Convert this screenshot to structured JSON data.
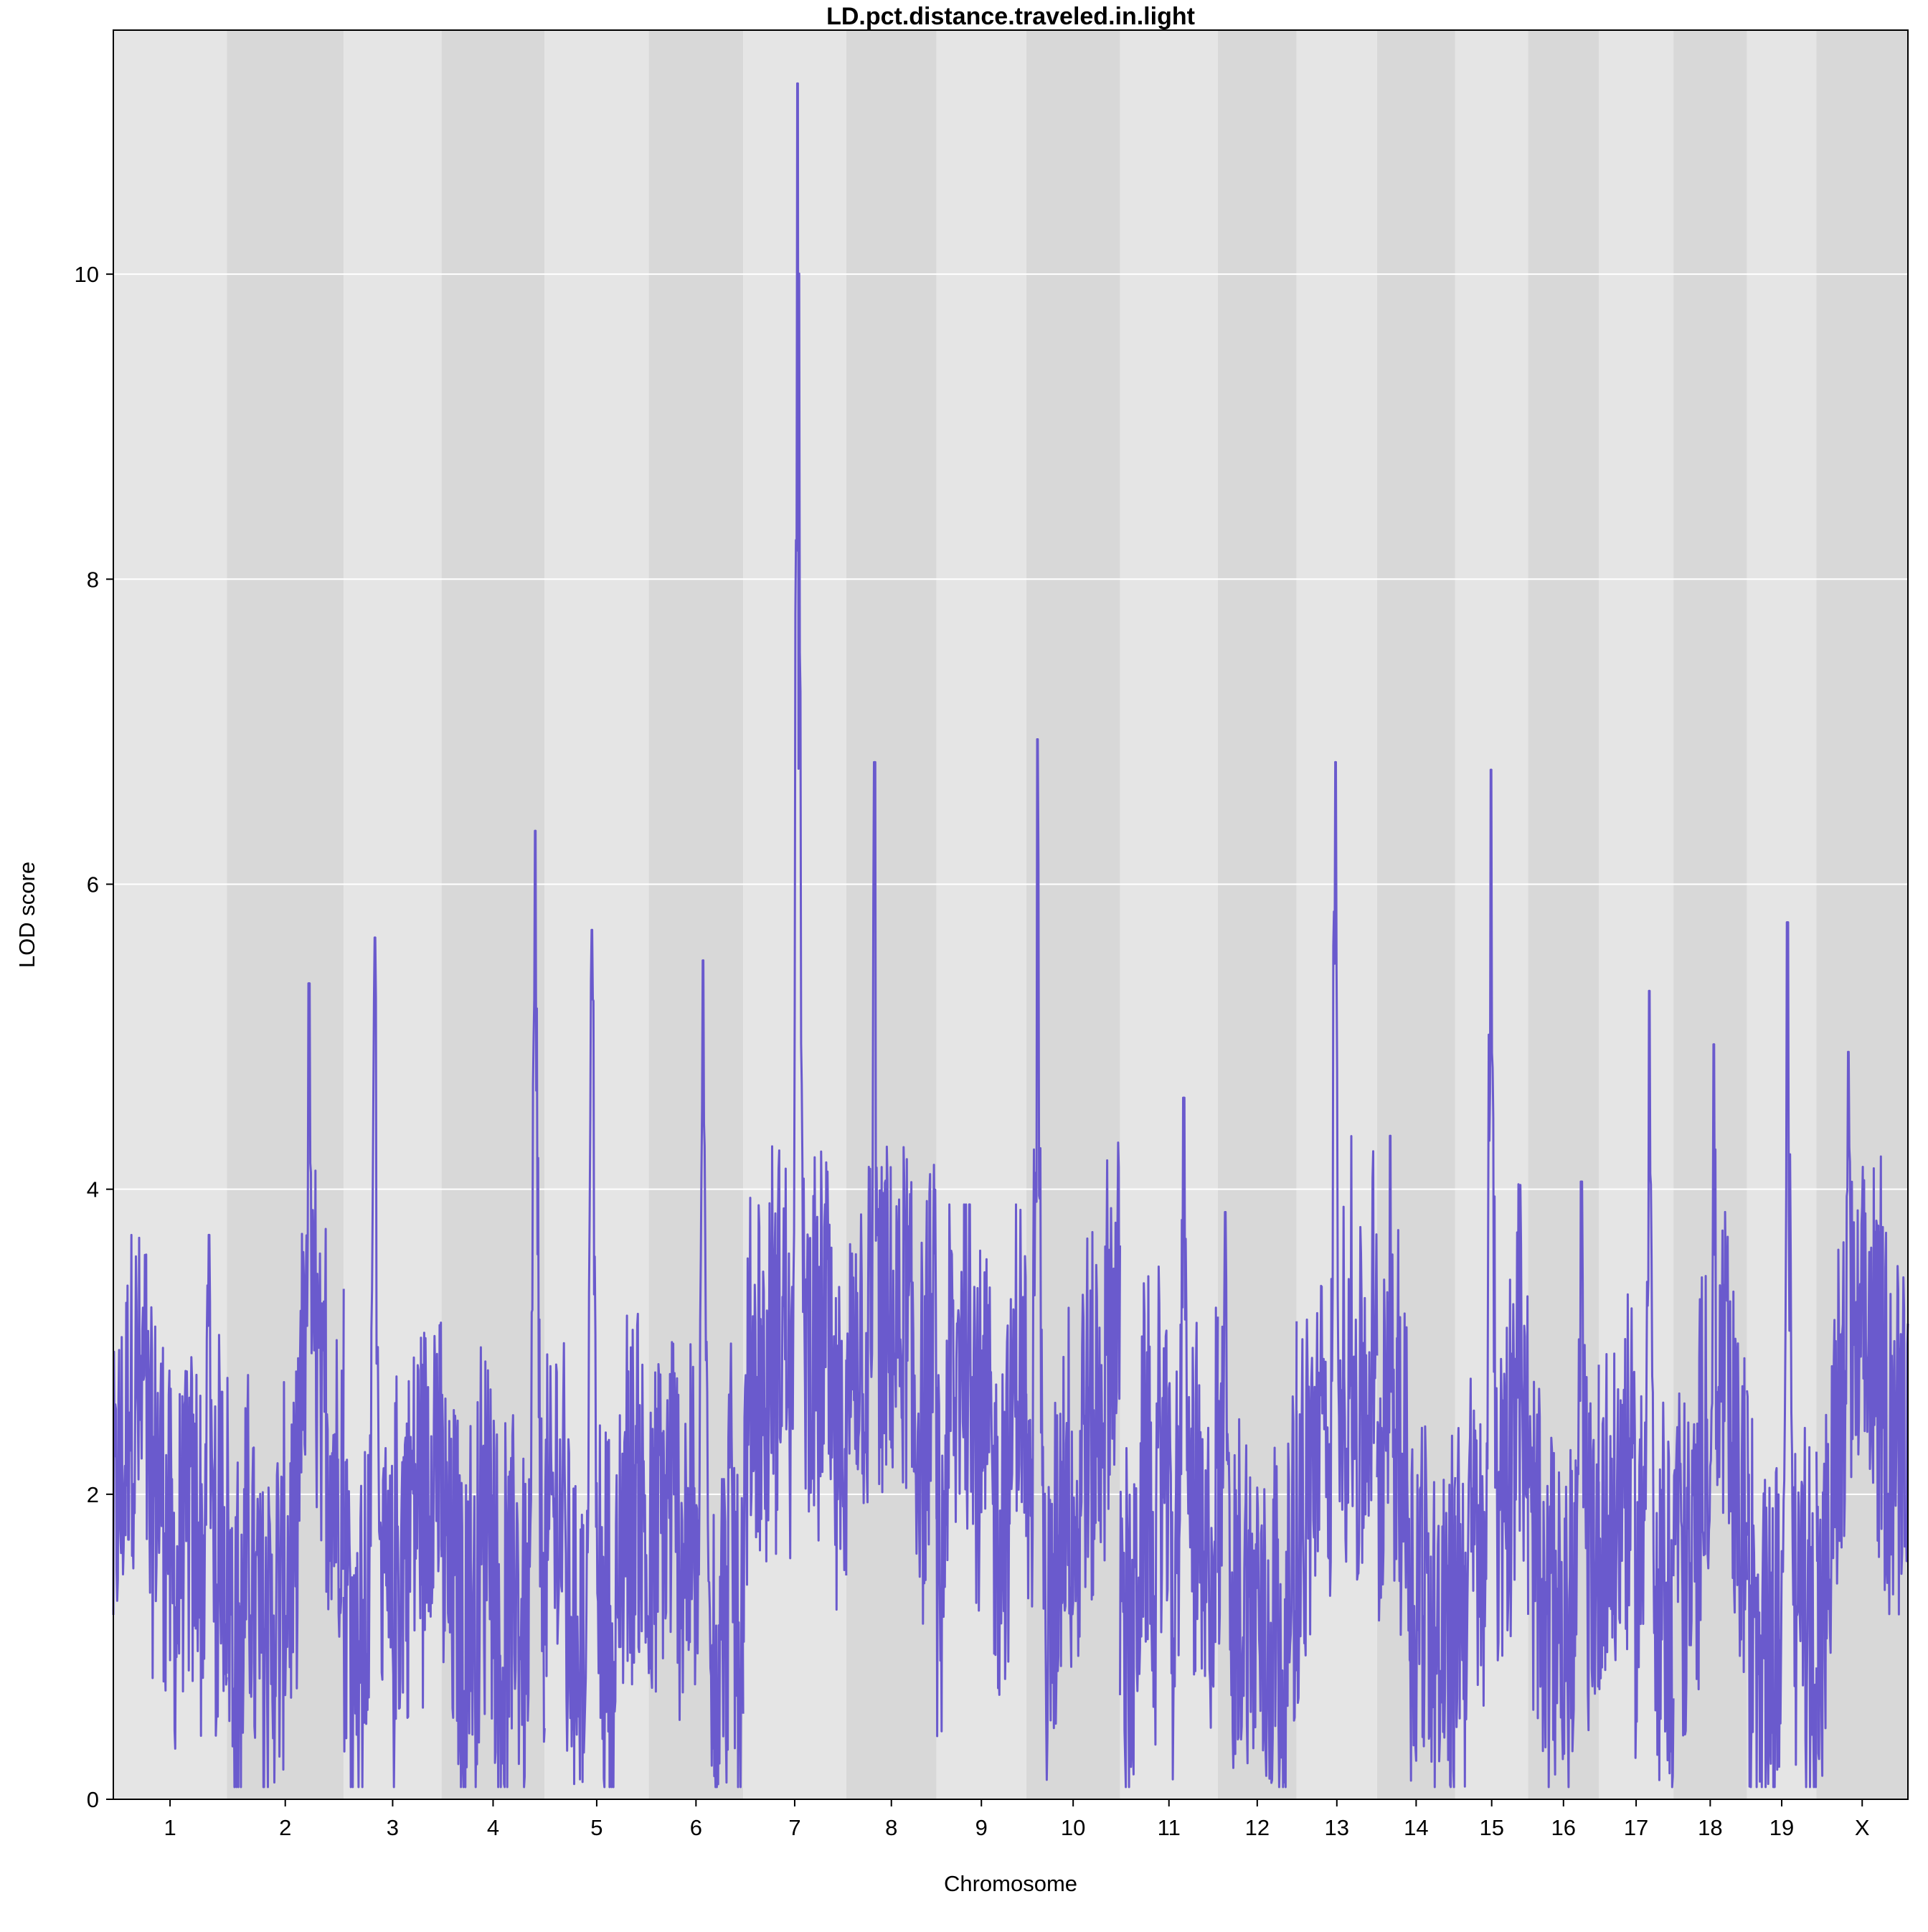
{
  "chart_data": {
    "type": "line",
    "title": "LD.pct.distance.traveled.in.light",
    "xlabel": "Chromosome",
    "ylabel": "LOD score",
    "ylim": [
      0,
      11.6
    ],
    "yticks": [
      0,
      2,
      4,
      6,
      8,
      10
    ],
    "grid": "horizontal",
    "legend": "none",
    "colors": {
      "line": "#6A5ACD",
      "band_light": "#E5E5E5",
      "band_dark": "#D8D8D8",
      "gridline": "#FFFFFF"
    },
    "chromosomes": [
      {
        "label": "1",
        "start": 0,
        "end": 196,
        "peak": {
          "pos": 165,
          "lod": 3.7
        }
      },
      {
        "label": "2",
        "start": 196,
        "end": 398,
        "peak": {
          "pos": 338,
          "lod": 5.35
        }
      },
      {
        "label": "3",
        "start": 398,
        "end": 567,
        "peak": {
          "pos": 452,
          "lod": 5.65
        }
      },
      {
        "label": "4",
        "start": 567,
        "end": 745,
        "peak": {
          "pos": 729,
          "lod": 6.35
        }
      },
      {
        "label": "5",
        "start": 745,
        "end": 925,
        "peak": {
          "pos": 827,
          "lod": 5.7
        }
      },
      {
        "label": "6",
        "start": 925,
        "end": 1088,
        "peak": {
          "pos": 1019,
          "lod": 5.5
        }
      },
      {
        "label": "7",
        "start": 1088,
        "end": 1266,
        "peak": {
          "pos": 1182,
          "lod": 11.25
        }
      },
      {
        "label": "8",
        "start": 1266,
        "end": 1422,
        "peak": {
          "pos": 1315,
          "lod": 6.8
        }
      },
      {
        "label": "9",
        "start": 1422,
        "end": 1577,
        "peak": {
          "pos": 1479,
          "lod": 3.9
        }
      },
      {
        "label": "10",
        "start": 1577,
        "end": 1739,
        "peak": {
          "pos": 1596,
          "lod": 6.95
        }
      },
      {
        "label": "11",
        "start": 1739,
        "end": 1908,
        "peak": {
          "pos": 1849,
          "lod": 4.6
        }
      },
      {
        "label": "12",
        "start": 1908,
        "end": 2044,
        "peak": {
          "pos": 1921,
          "lod": 3.85
        }
      },
      {
        "label": "13",
        "start": 2044,
        "end": 2183,
        "peak": {
          "pos": 2111,
          "lod": 6.8
        }
      },
      {
        "label": "14",
        "start": 2183,
        "end": 2318,
        "peak": {
          "pos": 2206,
          "lod": 4.35
        }
      },
      {
        "label": "15",
        "start": 2318,
        "end": 2444,
        "peak": {
          "pos": 2380,
          "lod": 6.75
        }
      },
      {
        "label": "16",
        "start": 2444,
        "end": 2566,
        "peak": {
          "pos": 2536,
          "lod": 4.05
        }
      },
      {
        "label": "17",
        "start": 2566,
        "end": 2695,
        "peak": {
          "pos": 2653,
          "lod": 5.3
        }
      },
      {
        "label": "18",
        "start": 2695,
        "end": 2822,
        "peak": {
          "pos": 2765,
          "lod": 4.95
        }
      },
      {
        "label": "19",
        "start": 2822,
        "end": 2942,
        "peak": {
          "pos": 2892,
          "lod": 5.75
        }
      },
      {
        "label": "X",
        "start": 2942,
        "end": 3100,
        "peak": {
          "pos": 2997,
          "lod": 4.9
        }
      }
    ]
  }
}
